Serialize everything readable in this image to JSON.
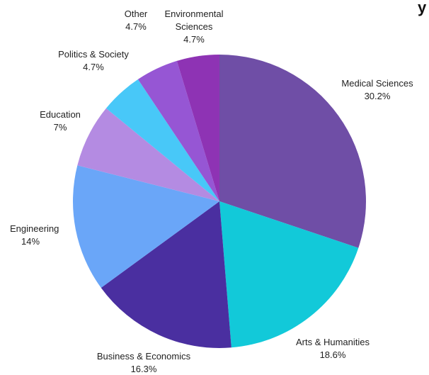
{
  "chart_data": {
    "type": "pie",
    "title_fragment": "y",
    "slices": [
      {
        "category": "Medical Sciences",
        "value": 30.2,
        "label": "30.2%",
        "color": "#6f4ea6"
      },
      {
        "category": "Arts & Humanities",
        "value": 18.6,
        "label": "18.6%",
        "color": "#12c9d9"
      },
      {
        "category": "Business & Economics",
        "value": 16.3,
        "label": "16.3%",
        "color": "#4a2fa0"
      },
      {
        "category": "Engineering",
        "value": 14,
        "label": "14%",
        "color": "#6aa6f8"
      },
      {
        "category": "Education",
        "value": 7,
        "label": "7%",
        "color": "#b48be2"
      },
      {
        "category": "Politics & Society",
        "value": 4.7,
        "label": "4.7%",
        "color": "#48c8f8"
      },
      {
        "category": "Other",
        "value": 4.7,
        "label": "4.7%",
        "color": "#9656d4"
      },
      {
        "category": "Environmental Sciences",
        "value": 4.7,
        "label": "4.7%",
        "color": "#8e33b4"
      }
    ]
  }
}
